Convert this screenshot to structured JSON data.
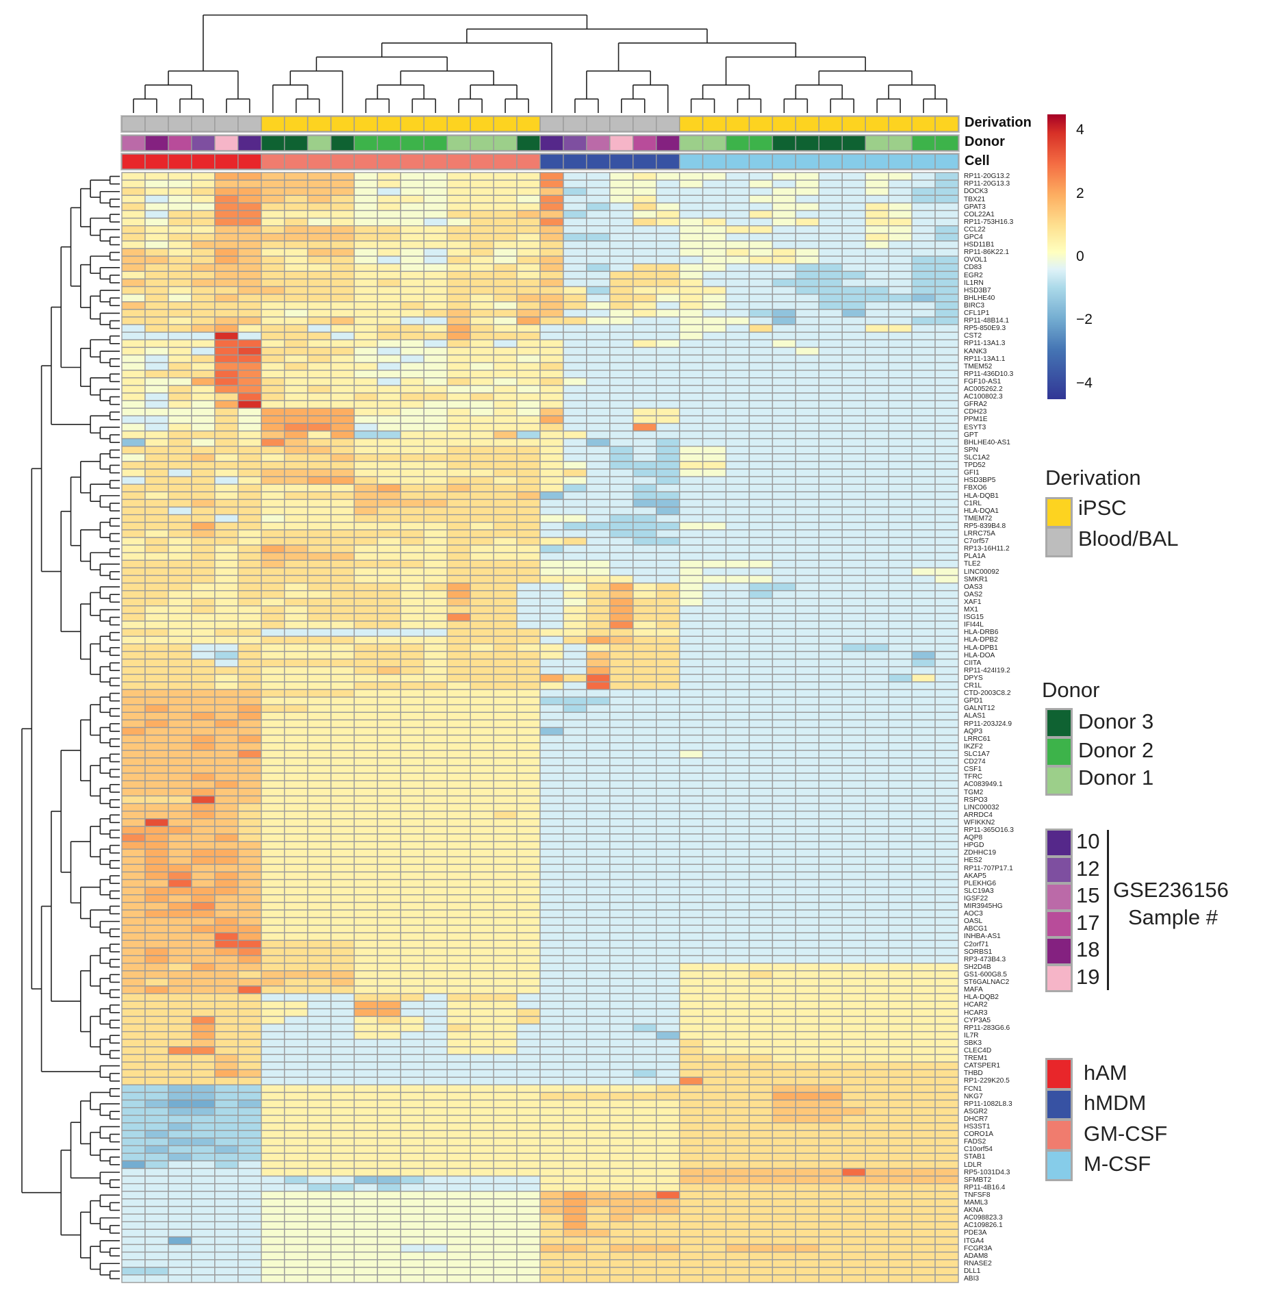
{
  "chart_data": {
    "type": "heatmap",
    "annotation_labels": {
      "derivation": "Derivation",
      "donor": "Donor",
      "cell": "Cell"
    },
    "columns": {
      "derivation": [
        "Blood/BAL",
        "Blood/BAL",
        "Blood/BAL",
        "Blood/BAL",
        "Blood/BAL",
        "Blood/BAL",
        "iPSC",
        "iPSC",
        "iPSC",
        "iPSC",
        "iPSC",
        "iPSC",
        "iPSC",
        "iPSC",
        "iPSC",
        "iPSC",
        "iPSC",
        "iPSC",
        "Blood/BAL",
        "Blood/BAL",
        "Blood/BAL",
        "Blood/BAL",
        "Blood/BAL",
        "Blood/BAL",
        "iPSC",
        "iPSC",
        "iPSC",
        "iPSC",
        "iPSC",
        "iPSC",
        "iPSC",
        "iPSC",
        "iPSC",
        "iPSC",
        "iPSC",
        "iPSC"
      ],
      "donor": [
        "15",
        "18",
        "17",
        "12",
        "19",
        "10",
        "Donor 3",
        "Donor 3",
        "Donor 1",
        "Donor 3",
        "Donor 2",
        "Donor 2",
        "Donor 2",
        "Donor 2",
        "Donor 1",
        "Donor 1",
        "Donor 1",
        "Donor 3",
        "10",
        "12",
        "15",
        "19",
        "17",
        "18",
        "Donor 1",
        "Donor 1",
        "Donor 2",
        "Donor 2",
        "Donor 3",
        "Donor 3",
        "Donor 3",
        "Donor 3",
        "Donor 1",
        "Donor 1",
        "Donor 2",
        "Donor 2"
      ],
      "cell": [
        "hAM",
        "hAM",
        "hAM",
        "hAM",
        "hAM",
        "hAM",
        "GM-CSF",
        "GM-CSF",
        "GM-CSF",
        "GM-CSF",
        "GM-CSF",
        "GM-CSF",
        "GM-CSF",
        "GM-CSF",
        "GM-CSF",
        "GM-CSF",
        "GM-CSF",
        "GM-CSF",
        "hMDM",
        "hMDM",
        "hMDM",
        "hMDM",
        "hMDM",
        "hMDM",
        "M-CSF",
        "M-CSF",
        "M-CSF",
        "M-CSF",
        "M-CSF",
        "M-CSF",
        "M-CSF",
        "M-CSF",
        "M-CSF",
        "M-CSF",
        "M-CSF",
        "M-CSF"
      ]
    },
    "rows": [
      "RP11-20G13.2",
      "RP11-20G13.3",
      "DOCK3",
      "TBX21",
      "GPAT3",
      "COL22A1",
      "RP11-753H16.3",
      "CCL22",
      "GPC4",
      "HSD11B1",
      "RP11-86K22.1",
      "OVOL1",
      "CD83",
      "EGR2",
      "IL1RN",
      "HSD3B7",
      "BHLHE40",
      "BIRC3",
      "CFL1P1",
      "RP11-48B14.1",
      "RP5-850E9.3",
      "CST2",
      "RP11-13A1.3",
      "KANK3",
      "RP11-13A1.1",
      "TMEM52",
      "RP11-436D10.3",
      "FGF10-AS1",
      "AC005262.2",
      "AC100802.3",
      "GFRA2",
      "CDH23",
      "PPM1E",
      "ESYT3",
      "GPT",
      "BHLHE40-AS1",
      "SPN",
      "SLC1A2",
      "TPD52",
      "GFI1",
      "HSD3BP5",
      "FBXO6",
      "HLA-DQB1",
      "C1RL",
      "HLA-DQA1",
      "TMEM72",
      "RP5-839B4.8",
      "LRRC75A",
      "C7orf57",
      "RP13-16H11.2",
      "PLA1A",
      "TLE2",
      "LINC00092",
      "SMKR1",
      "OAS3",
      "OAS2",
      "XAF1",
      "MX1",
      "ISG15",
      "IFI44L",
      "HLA-DRB6",
      "HLA-DPB2",
      "HLA-DPB1",
      "HLA-DOA",
      "CIITA",
      "RP11-424I19.2",
      "DPYS",
      "CR1L",
      "CTD-2003C8.2",
      "GPD1",
      "GALNT12",
      "ALAS1",
      "RP11-203J24.9",
      "AQP3",
      "LRRC61",
      "IKZF2",
      "SLC1A7",
      "CD274",
      "CSF1",
      "TFRC",
      "AC083949.1",
      "TGM2",
      "RSPO3",
      "LINC00032",
      "ARRDC4",
      "WFIKKN2",
      "RP11-365O16.3",
      "AQP8",
      "HPGD",
      "ZDHHC19",
      "HES2",
      "RP11-707P17.1",
      "AKAP5",
      "PLEKHG6",
      "SLC19A3",
      "IGSF22",
      "MIR3945HG",
      "AOC3",
      "OASL",
      "ABCG1",
      "INHBA-AS1",
      "C2orf71",
      "SORBS1",
      "RP3-473B4.3",
      "SH2D4B",
      "GS1-600G8.5",
      "ST6GALNAC2",
      "MAFA",
      "HLA-DQB2",
      "HCAR2",
      "HCAR3",
      "CYP3A5",
      "RP11-283G6.6",
      "IL7R",
      "SBK3",
      "CLEC4D",
      "TREM1",
      "CATSPER1",
      "THBD",
      "RP1-229K20.5",
      "FCN1",
      "NKG7",
      "RP11-1082L8.3",
      "ASGR2",
      "DHCR7",
      "HS3ST1",
      "CORO1A",
      "FADS2",
      "C10orf54",
      "STAB1",
      "LDLR",
      "RP5-1031D4.3",
      "SFMBT2",
      "RP11-4B16.4",
      "TNFSF8",
      "MAML3",
      "AKNA",
      "AC098823.3",
      "AC109826.1",
      "PDE3A",
      "ITGA4",
      "FCGR3A",
      "ADAM8",
      "RNASE2",
      "DLL1",
      "ABI3"
    ],
    "value_codes": "abcdefghijklmnopqr",
    "code_start": -4,
    "code_step": 0.5,
    "values": [
      "jjjjmm llllijiijjjj nhhiji iihhiihhiihg",
      "jiijll llllijiijjjj nhhiih ihhihihhihhg",
      "kjjkmm llllihiijjjj lghiih hhhhiihhihgg",
      "jhijnm lklkijjijjji nhhijh hhhiihhhhhgg",
      "kiiinn kkkkijiijjjj nhghki hhhhiihhjihh",
      "jhkknn jjjjiiiikkkl lghhij hhhjihhhjihh",
      "jikknn jkijiiihikkk nhhhkj ijhhijhhjjhh",
      "kjjjll klllkkjjkkkk lhhhhh iijjhhhhiihg",
      "kjkkll llllkkjjkkkj lgghhh iihhhhhhjihg",
      "jijlll kkkkjjjjjkjj khhhhh iiiihhhhihhh",
      "lkjkml jjllijihjkij khhhhh iijijihhhhhh",
      "llkkml kjkkihihkjik lhhhhh hiijjihhhhgg",
      "lkklll kjjkjjiijjkj lhghkk iihhhgghhhgg",
      "jkkkll kkkkjjjjkkkj khhkkk ihhhhggghhgg",
      "lkklll kkkkjkjjkkkk lhhkkk jhhhggghhhgg",
      "kkjkkl lkkkjjjjkkkk kjgkjj jjhhhgggghgg",
      "ikiklk kkkkjjjjkjkl lkhkki jihhhhggggfg",
      "lkkkkk jjjjjjkjkjik lkikjh jihhhhgghhhg",
      "kkkkkk jijjjjjklkkl lhhiji ihhgfhhfhhhg",
      "kkjkll jjkljjhhljim kkiihh iiihfhhhhhgg",
      "hkklmj kkhjjkkjmkjj hhhhhh iihkhhhhjjhh",
      "hhhhqh kkkhjkkkmkkk hhhhhh ihhhhhhhhhhh",
      "jjjjoo jkjjjiihkjhj jhhhji hhhhihhhhhhh",
      "jijhop kkkkihiijjjj jhhhhh hhhhhihhhhhh",
      "ihjkoo kjkjiihijjji jhhhhh hhhhhhhhhhhh",
      "ihkjnn jkjjjhiijijj khhhhh hhhhhhhhhhhh",
      "jkkkon jjjjiiiijjjj jhhhhh hhhhhhhhhhhh",
      "jiimon kjjjjhjikjij kihhhh hhhhhhhhhhhh",
      "jikjnn kjkjjjjjiiji jhhhhh hhhhhhhhhhhh",
      "jhkjko kjjjkjkkjkjj jhhhhh hhhhhhhhhhhh",
      "ihjimq jjjjjjjiiiji jhhhhh hhhhhhhhhhhh",
      "iiiiki mmmmjjiijiji lhhhjj hhhhhhhhhhhh",
      "hhiiki mmmmiiiijjjj mhhhjj hhhhhhhhhhhh",
      "ihjiki mnnmhiiijjjj khhhnh hhhhhhhhhhhh",
      "jjkkkj lmjmggjjjjlg jjhhhh hhhhhhhhhhhh",
      "fjkikj nlkkjjjjjjjj jhfhhg hhhhhhhhhhhh",
      "kkkkkk kllkjjjjkkkk jhhghg iihhhhhhhhhh",
      "ikkljk jkklkkkkkkkk jhhghg iihhhhhhhhhh",
      "kkkkkk kkkkjjjjkkkk jihggg jjhhhhhhhhhh",
      "jkhkjk lllljjjjjjkk jkhhgg iihhhhhhhhhh",
      "hkkkhj llmmkjjjkkjk jihhhg hhhhhhhhhhhh",
      "kkkkjk jjjjlmkklkkk jghhgh hhhhhhhhhhhh",
      "kjkkjk jkkkllkkkkkl fhhhgg hhhhhhhhhhhh",
      "kkklkk jjjjllllkkkk hhhhff hhhhhhhhhhhh",
      "kkhkkk jjjjlkkkkkkk hhhhhf hhhhhhhhhhhh",
      "kkkkhk ijjjkkkkkkkk iihggh hhhhhhhhhhhh",
      "kkkmkk jjjjjjjjkjkk hggggg iihhhhhhhhhh",
      "kjklkj kkkkkkkjkkkk hhhggh hhhhhhhhhhhh",
      "jkjkkj kkkkkjkjkkjk jkhhgg hhhhhhhhhhhh",
      "jkjkjk mlkkjjjjkjjj ghhhhh hhhhhhhhhhhh",
      "jjjkjk lllljjjjkjjj hhhhhh hhhhhhhhhhhh",
      "kkkkjk lkkkkkkjkkkk iiihhh iiiihhhhhhhh",
      "kkkkjk kkkkjjjjkkkk iiihhh ihhhhhhhhhii",
      "kkkkjk kkkkjjjjkkkk jjjjhh iiiihhhhhhhi",
      "kkkjjk kjkkkkjkmkkh hikmjk ihhgghhhhhhh",
      "kkjjjk kjjkkkjjmkkh hjkljk ihhghhhhhhhh",
      "kkjkjk jkkkkkjjlkkh hikmkk ihhhhhhhhhhh",
      "kjjkjj kjkkkkjjkkkh hjkmkk hhhhhhhhhhhh",
      "kjjjjj kjkkkkjjnkkh hjkmkk hhhhhhhhhhhh",
      "jjjjjj kjjjkkjjkkkh hjknjk hhhhhhhhhhhh",
      "kkjjkk hhhhhhhhkkkk jjkkjj hhhhhhhhhhhh",
      "jjjjjj kkkkjjjjkkkk hkmlkk hhhhhhhhhhhh",
      "kkkhhk jjjjkkkjkjkj jhjkkk hhhhhhhgghhh",
      "kkkhgk jjjjkkkjkkkk jhlkkk hhhhhhhhhhfh",
      "kkkkhk kkkkkkkjkkkk hhlkkk hhhhhhhhhhgh",
      "kkkkkk jjjjklkjkkkk hhmkkk hhhhhhhhhhhh",
      "kkkkjk jjjjjjjjkkkk mkokkk hhhhhhhhhgjh",
      "kkkkjk jjjjkkkkjkkk jhokkk hhhhhhhhhhhh",
      "llllll kkkkjjjjjjjj hhhhhh hhhhhhhhhhhh",
      "llllll jjjjjjjjjjjj ggghhh hhhhhhhhhhhh",
      "lmlllm kkjjjjjjjjjj hghhhh hhhhhhhhhhhh",
      "lllmlm jjjjjjjjjjjj hhhhhh hhhhhhhhhhhh",
      "lmllml jjjjjjjjjjjj hhhhhh hhhhhhhhhhhh",
      "mlllll jjjjjjjjjjjj fhhhhh hhhhhhhhhhhh",
      "lllmlm jjjjjjjjjjjj hhhhhh hhhhhhhhhhhh",
      "lllmll jjjjjjjjjjjj hhhhhh hhhhhhhhhhhh",
      "llllln jjjjjjjjjjjj hhhhhh ihhhhhhhhhhh",
      "llllll jjjjjjjjjjjj hhhhhh hhhhhhhhhhhh",
      "llllll jjjjjjjjjjjj hhhhhh hhhhhhhhhhhh",
      "lllmll jjjjjjjjjjjj hhhhhh hhhhhhhhhhhh",
      "llllml jjjjjjjjjjjj hhhhhh hhhhhhhhhhhh",
      "lllmll jjjjjjjjjjjj hhhhhh hhhhhhhhhhhh",
      "kkkpll jjjjjjjjjjjj hhhhhh hhhhhhhhhhhh",
      "lllmlk jjjjjjjjjjjj hhhhhh hhhhhhhhhhhh",
      "lllmlk jjjjjjjjjjkj hhhhhh hhhhhhhhhhhh",
      "lplllk jjjjjjjjjjjj hhhhhh hhhhhhhhhhhh",
      "mmmllk jjjjjjjjjjjj hhhhhh hhhhhhhhhhhh",
      "nmllmk jjjjjjjjjjjj hhhhhh hhhhhhhhhhhh",
      "mmllll jjjjjjjjjjjj hhhhhh hhhhhhhhhhhh",
      "lmlmml jjjjjjjjjjjj hhhhhh hhhhhhhhhhhh",
      "lmlmml jjjjjjjjjjjj hhhhhh hhhhhhhhhhhh",
      "lmmlll jjjjjjjjjjjj hhhhhh hhhhhhhhhhhh",
      "lmnlml jjjjjjjjjjjj hhhhhh hhhhhhhhhhhh",
      "llolml jjjjjjjjjjjj hhhhhh hhhhhhhhhhhh",
      "lmmmml jjjjjjjjjjjj hhhhhh hhhhhhhhhhhh",
      "lmlmll jjjjjjjjjjjj hhhhhh hhhhhhhhhhhh",
      "llmnll jjjjjjjjjjjj hhhhhh hhhhhhhhhhhh",
      "lmmmll jjjjjjjjjjjj hhhhhh hhhhhhhhhhhh",
      "llllml jjjjjjjjjjjj hhhhhh hhhhhhhhhhhh",
      "lllmmm jjjjjjjjjjjj hhhhhh hhhhhhhhhhhh",
      "llllom jjjjjjjjjjjj hhhhhh hhhhhhhhhhhh",
      "lllloo kkkkjjjjjjjj hhhhhh hhhhhhhhhhhh",
      "lmllmn kkkkjjjjjjjj hhhhhh hhhhhhhhhhhh",
      "lmlllm kkkkjjjjjjjj hhhhhh hhhhhhhhhhhh",
      "llkmll kkkkjjjjjjjj hhhhhh jjjjjjjjjjjj",
      "lllllk lllljjjjjjjj hhhhhh jjjkjjjjjjjj",
      "lkllll lkkljjjjjjjj hhhhhh jjjjjjjjjjjj",
      "lmlllo kkkkjjjjjjjj hhhhhh jjjjjjjjjjjj",
      "kkkkkk hhhhkkkhkkkh hhhhhh jjjjjjjjjjjj",
      "kkkkkk jjhhmmhhjjjh hhhhhh jjjjjjjjjjjj",
      "kkkkkk jjhhmmhhjjjk hhhhhh jjjjjjjjjjjj",
      "kkknkk jhhhjkjhjjjk hhhhhh jjjjjjjjjjjj",
      "kkkmkk hhhhjjjhkjjh hhhhgh jjjjjjjjjjjj",
      "kkkmkk hhhhjjhhjjjh hhhhhf jjjjjjjjjjjj",
      "kkklkk hhhhhhhhjjjh hhhhhh kjjjjjjjjjjj",
      "kknnkk hhhhhhhhjjjh hhhhhh kjjjjjjjjjjj",
      "kkkklk hhhhhhhhhhhh hhhhhh kkkkjjjjjjjj",
      "kkkklk hhhhhhhhhhhh hhhhhh kkkkkkkkkkkk",
      "kkkkml hhhhhhhhhhhh hhhhgh kkkkkkkkkkkk",
      "kkkkkk hhhhhhhhhhhh hhhhhh nkkkkkkkkkkk",
      "ggffgg jjjjjjjjjjjj jjjjjk kkkklllkkkkk",
      "ggffgg jjjjjjjjjjjj kkkkkk kkkkmmmkkkkk",
      "gfeegf jjjjjjjjjjjj jjjjjj kkkklllkkkkk",
      "ggffgg jjjjjjjjjjjj jjjjjj kkkkllllkkkk",
      "gggggg jjjjjjjjjjjj jjjjjj kkkklllkkkkk",
      "ggfggg jjjjjjjjjjjj jjjjjj kkkkkkkkkkkk",
      "gfgggg jjjjjjjjjjjj jjjjjj kkkkkkkkkkkk",
      "ggffgg jjjjjjjjjjjj jjjjjj kkkkkkkkkkkk",
      "gfggfg jjjjjjjjjjjj jjjjjj kkkkkkkkkkkk",
      "ggfggg jjjjjjjjjjjj jjjjjj kkkkkkkkkkkk",
      "eghhgh jjjjjjjjjjjj jjjjjj kkkkkkkkkkkk",
      "hhhhhh jjjjjjjjjjjj jjjjjj lllllllollll",
      "hhhhhh hghhffghhhhh jjjjjj llllllllllll",
      "hhhhhh hhgghghhhhhh jjjjjj kkkkkkkkkkkk",
      "hhhhhh iiiiiiiiiiii lmlllo kkkkkkkkkkkk",
      "hhhhhh iiiiiiiiiiii lmllll kkkkkkkkkkkk",
      "hhhhhh iiiiiiiiiiii lmklll kkkkkkkkkkkk",
      "hhhhhh iiiiiiiiiiii kmklkk kkkkkkkkkkkk",
      "hhhhhh iiiiiiiiiiii kmkkkk kkkkkkkkkkkk",
      "hhhhhh iiiiiiiiiiii kllkkk kkkkkkkkkkkk",
      "hhehhh iiiiiiiiiiii kkkkkk kkkkkkkkkkkk",
      "hhhhhh iiiiiihhiiii llklll kkllllkkkkkk",
      "hhhhhh iiiiiiiiiiii kkkkkk kkkkkkkkkkkk",
      "hhhhhh iiiiiiiiiiii kkkkkk kkkkkkkkkkkk",
      "gghhhh iiiiiiiiiiii kkkkkk kkkkkkkkkkkk",
      "hhhhhh iiiiiiiiiiii kkkkkk kkkkkkkkkkkk"
    ],
    "colorbar": {
      "range": [
        -4.5,
        4.5
      ],
      "ticks": [
        {
          "value": 4,
          "label": "4"
        },
        {
          "value": 2,
          "label": "2"
        },
        {
          "value": 0,
          "label": "0"
        },
        {
          "value": -2,
          "label": "−2"
        },
        {
          "value": -4,
          "label": "−4"
        }
      ],
      "stops": [
        "#313695",
        "#4575b4",
        "#74add1",
        "#abd9e9",
        "#e0f3f8",
        "#ffffbf",
        "#fee090",
        "#fdae61",
        "#f46d43",
        "#d73027",
        "#a50026"
      ]
    }
  },
  "legends": {
    "derivation": {
      "title": "Derivation",
      "items": [
        {
          "label": "iPSC",
          "color": "#fdd320"
        },
        {
          "label": "Blood/BAL",
          "color": "#bdbdbd"
        }
      ]
    },
    "donor": {
      "title": "Donor",
      "items": [
        {
          "label": "Donor 3",
          "color": "#0f6232"
        },
        {
          "label": "Donor 2",
          "color": "#3db34a"
        },
        {
          "label": "Donor 1",
          "color": "#9ccf8a"
        }
      ]
    },
    "samples": {
      "group_label": "GSE236156",
      "group_sublabel": "Sample #",
      "items": [
        {
          "label": "10",
          "color": "#55288a"
        },
        {
          "label": "12",
          "color": "#7e4fa0"
        },
        {
          "label": "15",
          "color": "#bb6aa8"
        },
        {
          "label": "17",
          "color": "#b84c9a"
        },
        {
          "label": "18",
          "color": "#842180"
        },
        {
          "label": "19",
          "color": "#f6b5c8"
        }
      ]
    },
    "cell": {
      "items": [
        {
          "label": "hAM",
          "color": "#e8262a"
        },
        {
          "label": "hMDM",
          "color": "#3752a3"
        },
        {
          "label": "GM-CSF",
          "color": "#f07c6e"
        },
        {
          "label": "M-CSF",
          "color": "#86cce9"
        }
      ]
    }
  }
}
